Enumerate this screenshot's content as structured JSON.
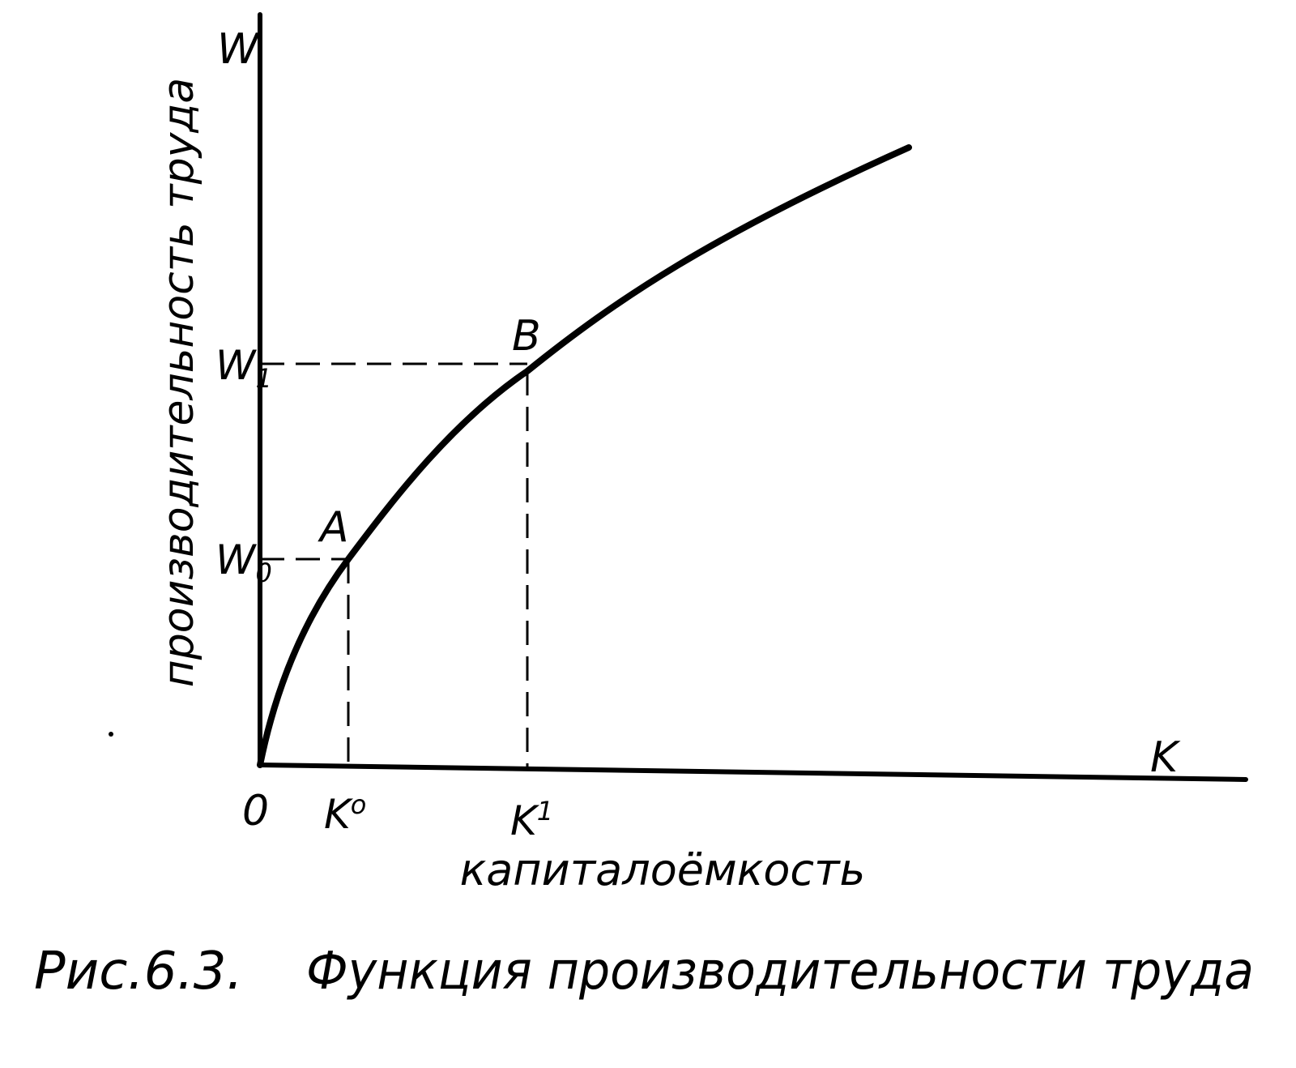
{
  "figure": {
    "y_axis_symbol": "W",
    "x_axis_symbol": "K",
    "origin_label": "0",
    "y_axis_title": "производительность труда",
    "x_axis_title": "капиталоёмкость",
    "caption_number": "Рис.6.3.",
    "caption_text": "Функция производительности труда"
  },
  "points": [
    {
      "name": "A",
      "x_label": "K",
      "x_label_sup": "o",
      "y_label": "W",
      "y_label_sub": "0"
    },
    {
      "name": "B",
      "x_label": "K",
      "x_label_sup": "1",
      "y_label": "W",
      "y_label_sub": "1"
    }
  ]
}
